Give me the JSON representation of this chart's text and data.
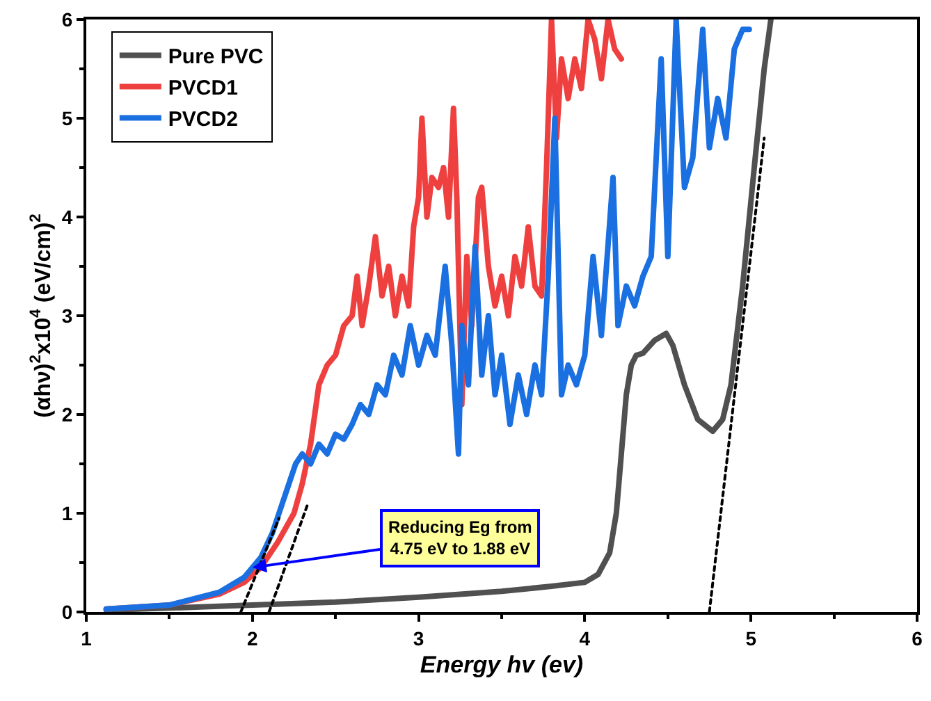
{
  "chart_data": {
    "type": "line",
    "xlabel": "Energy hv (ev)",
    "ylabel": "(αhν)$^{2}$x10$^{4}$ (eV/cm)$^{2}$",
    "xlim": [
      1,
      6
    ],
    "ylim": [
      0,
      6
    ],
    "xticks": [
      1,
      2,
      3,
      4,
      5,
      6
    ],
    "yticks": [
      0,
      1,
      2,
      3,
      4,
      5,
      6
    ],
    "legend": "top left",
    "line_style": "solid",
    "marker": "none",
    "series": [
      {
        "name": "Pure PVC",
        "color": "#505050",
        "x": [
          1.12,
          1.5,
          2.0,
          2.5,
          3.0,
          3.5,
          3.8,
          4.0,
          4.08,
          4.15,
          4.19,
          4.22,
          4.25,
          4.28,
          4.31,
          4.35,
          4.42,
          4.49,
          4.53,
          4.6,
          4.68,
          4.77,
          4.83,
          4.88,
          4.95,
          5.02,
          5.08,
          5.12
        ],
        "values": [
          0.02,
          0.04,
          0.07,
          0.1,
          0.15,
          0.21,
          0.26,
          0.3,
          0.38,
          0.6,
          1.0,
          1.6,
          2.2,
          2.5,
          2.6,
          2.62,
          2.75,
          2.82,
          2.7,
          2.3,
          1.95,
          1.83,
          1.95,
          2.3,
          3.3,
          4.5,
          5.5,
          6.0
        ]
      },
      {
        "name": "PVCD1",
        "color": "#ef4040",
        "x": [
          1.12,
          1.5,
          1.8,
          1.95,
          2.05,
          2.15,
          2.25,
          2.3,
          2.35,
          2.4,
          2.45,
          2.5,
          2.55,
          2.6,
          2.63,
          2.66,
          2.7,
          2.74,
          2.78,
          2.82,
          2.86,
          2.9,
          2.94,
          2.97,
          3.0,
          3.02,
          3.05,
          3.08,
          3.12,
          3.15,
          3.18,
          3.21,
          3.23,
          3.26,
          3.29,
          3.32,
          3.36,
          3.38,
          3.42,
          3.46,
          3.5,
          3.54,
          3.58,
          3.62,
          3.66,
          3.7,
          3.74,
          3.77,
          3.8,
          3.83,
          3.86,
          3.9,
          3.94,
          3.98,
          4.02,
          4.06,
          4.1,
          4.14,
          4.18,
          4.22
        ],
        "values": [
          0.03,
          0.07,
          0.18,
          0.3,
          0.45,
          0.7,
          1.0,
          1.3,
          1.7,
          2.3,
          2.5,
          2.6,
          2.9,
          3.0,
          3.4,
          2.9,
          3.3,
          3.8,
          3.2,
          3.5,
          3.0,
          3.4,
          3.1,
          3.9,
          4.2,
          5.0,
          4.0,
          4.4,
          4.3,
          4.5,
          4.0,
          5.1,
          4.2,
          2.1,
          3.6,
          2.9,
          4.2,
          4.3,
          3.5,
          3.1,
          3.4,
          3.0,
          3.6,
          3.3,
          3.9,
          3.3,
          3.2,
          4.5,
          6.0,
          4.8,
          5.6,
          5.2,
          5.6,
          5.3,
          6.0,
          5.8,
          5.4,
          6.0,
          5.7,
          5.6
        ]
      },
      {
        "name": "PVCD2",
        "color": "#1a70e0",
        "x": [
          1.12,
          1.5,
          1.8,
          1.95,
          2.05,
          2.12,
          2.18,
          2.22,
          2.26,
          2.3,
          2.35,
          2.4,
          2.45,
          2.5,
          2.55,
          2.6,
          2.65,
          2.7,
          2.75,
          2.8,
          2.85,
          2.9,
          2.95,
          3.0,
          3.05,
          3.1,
          3.16,
          3.2,
          3.24,
          3.26,
          3.3,
          3.34,
          3.38,
          3.42,
          3.46,
          3.5,
          3.55,
          3.6,
          3.65,
          3.7,
          3.74,
          3.78,
          3.82,
          3.86,
          3.9,
          3.95,
          4.0,
          4.05,
          4.1,
          4.17,
          4.2,
          4.25,
          4.3,
          4.35,
          4.4,
          4.46,
          4.5,
          4.55,
          4.6,
          4.65,
          4.71,
          4.75,
          4.8,
          4.85,
          4.9,
          4.95,
          4.99
        ],
        "values": [
          0.03,
          0.07,
          0.2,
          0.35,
          0.55,
          0.8,
          1.1,
          1.3,
          1.5,
          1.6,
          1.5,
          1.7,
          1.6,
          1.8,
          1.75,
          1.9,
          2.1,
          2.0,
          2.3,
          2.2,
          2.6,
          2.4,
          2.9,
          2.5,
          2.8,
          2.6,
          3.5,
          2.7,
          1.6,
          2.9,
          2.3,
          3.7,
          2.4,
          3.0,
          2.2,
          2.6,
          1.9,
          2.4,
          2.0,
          2.5,
          2.2,
          3.4,
          5.0,
          2.2,
          2.5,
          2.3,
          2.6,
          3.6,
          2.8,
          4.4,
          2.9,
          3.3,
          3.1,
          3.4,
          3.6,
          5.6,
          3.6,
          6.0,
          4.3,
          4.6,
          5.9,
          4.7,
          5.2,
          4.8,
          5.7,
          5.9,
          5.9
        ]
      },
      {
        "type": "line",
        "color": "#000000",
        "line_style": "dotted",
        "x": [
          4.75,
          5.08
        ],
        "values": [
          0,
          4.8
        ]
      },
      {
        "type": "line",
        "color": "#000000",
        "line_style": "dotted",
        "x": [
          2.1,
          2.33
        ],
        "values": [
          0,
          1.08
        ]
      },
      {
        "type": "line",
        "color": "#000000",
        "line_style": "dotted",
        "x": [
          1.93,
          2.16
        ],
        "values": [
          0,
          0.95
        ]
      }
    ],
    "annotations": [
      {
        "text": "Reducing Eg from\n4.75 eV to 1.88 eV",
        "x": 2.0,
        "y": 0.45
      }
    ]
  }
}
